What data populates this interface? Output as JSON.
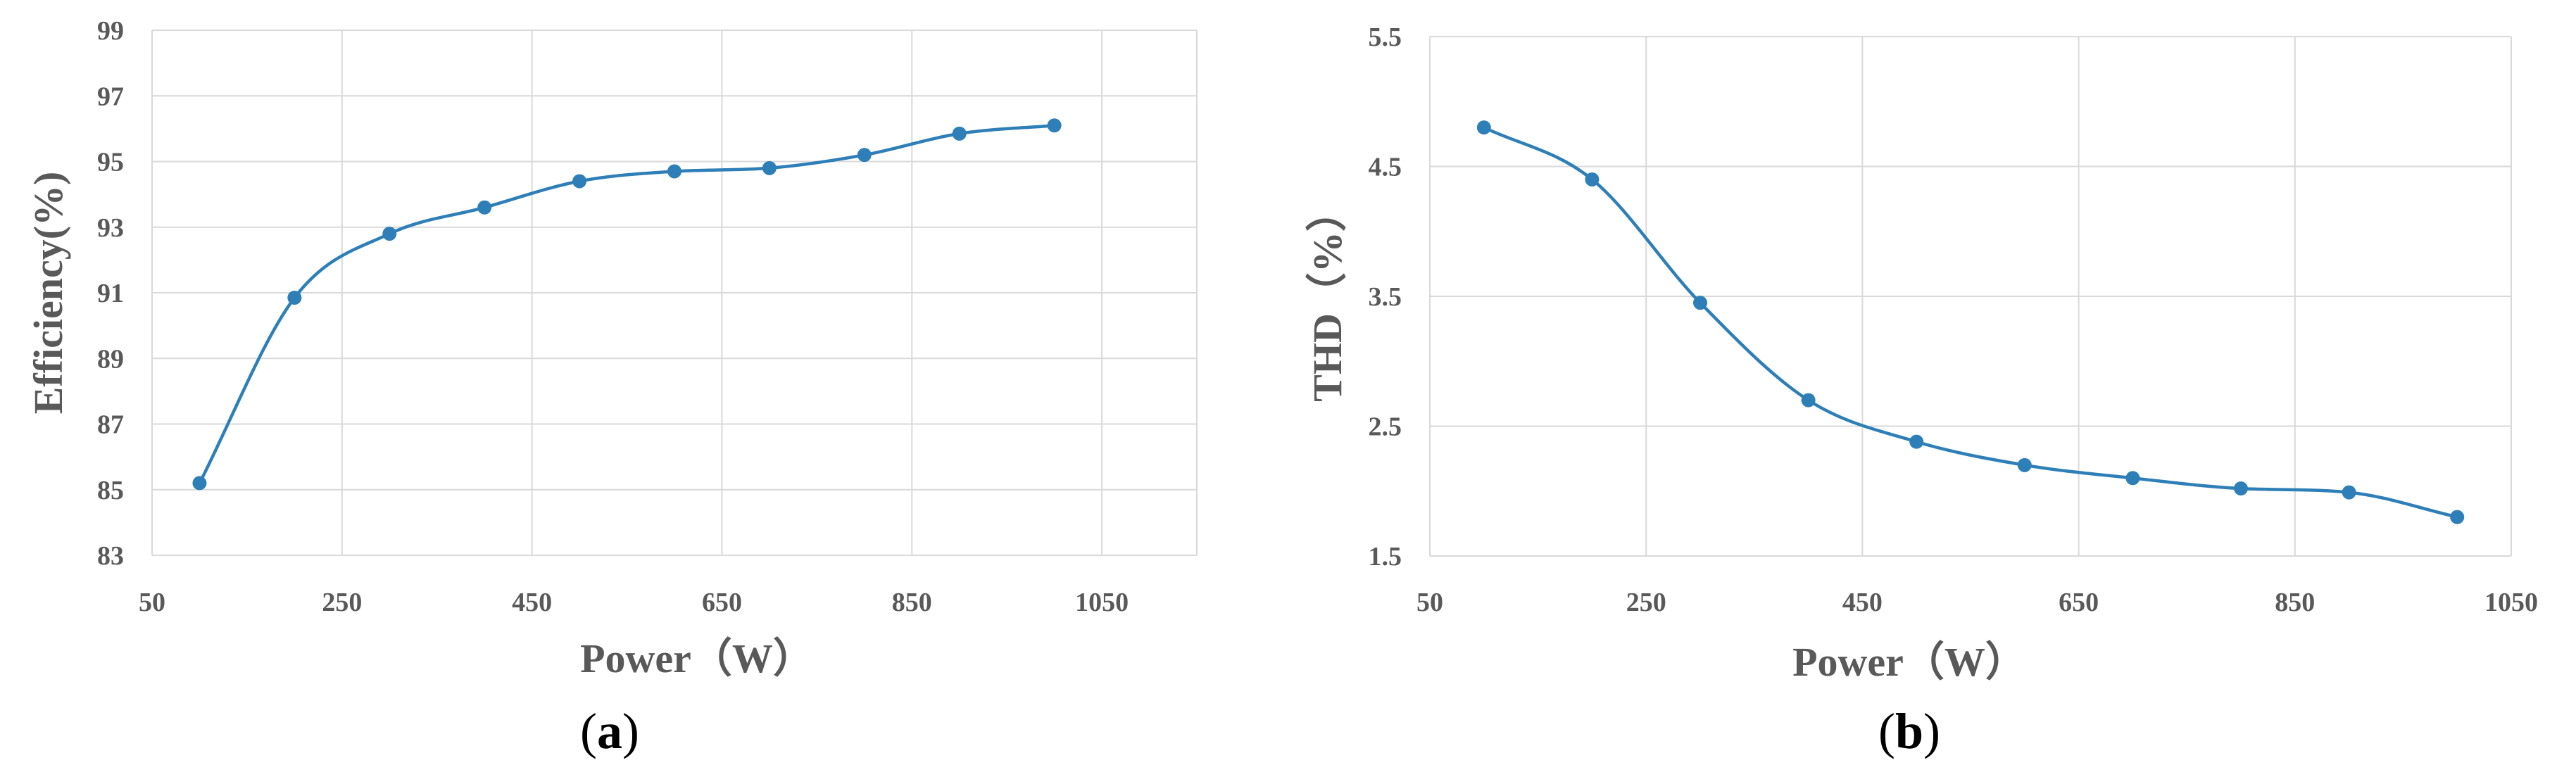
{
  "chart_data": [
    {
      "type": "line",
      "panel_label": {
        "open": "(",
        "letter": "a",
        "close": ")"
      },
      "xlabel": "Power（W）",
      "ylabel": "Efficiency(%)",
      "xlim": [
        50,
        1150
      ],
      "ylim": [
        83,
        99
      ],
      "x_ticks": [
        50,
        250,
        450,
        650,
        850,
        1050
      ],
      "y_ticks": [
        83,
        85,
        87,
        89,
        91,
        93,
        95,
        97,
        99
      ],
      "grid": true,
      "series": [
        {
          "color": "#2E7FB8",
          "x": [
            100,
            200,
            300,
            400,
            500,
            600,
            700,
            800,
            900,
            1000
          ],
          "y": [
            85.2,
            90.85,
            92.8,
            93.6,
            94.4,
            94.7,
            94.8,
            95.2,
            95.85,
            96.1
          ]
        }
      ]
    },
    {
      "type": "line",
      "panel_label": {
        "open": "(",
        "letter": "b",
        "close": ")"
      },
      "xlabel": "Power（W）",
      "ylabel": "THD（%）",
      "xlim": [
        50,
        1050
      ],
      "ylim": [
        1.5,
        5.5
      ],
      "x_ticks": [
        50,
        250,
        450,
        650,
        850,
        1050
      ],
      "y_ticks": [
        1.5,
        2.5,
        3.5,
        4.5,
        5.5
      ],
      "grid": true,
      "series": [
        {
          "color": "#2E7FB8",
          "x": [
            100,
            200,
            300,
            400,
            500,
            600,
            700,
            800,
            900,
            1000
          ],
          "y": [
            4.8,
            4.4,
            3.45,
            2.7,
            2.38,
            2.2,
            2.1,
            2.02,
            1.99,
            1.8
          ]
        }
      ]
    }
  ]
}
